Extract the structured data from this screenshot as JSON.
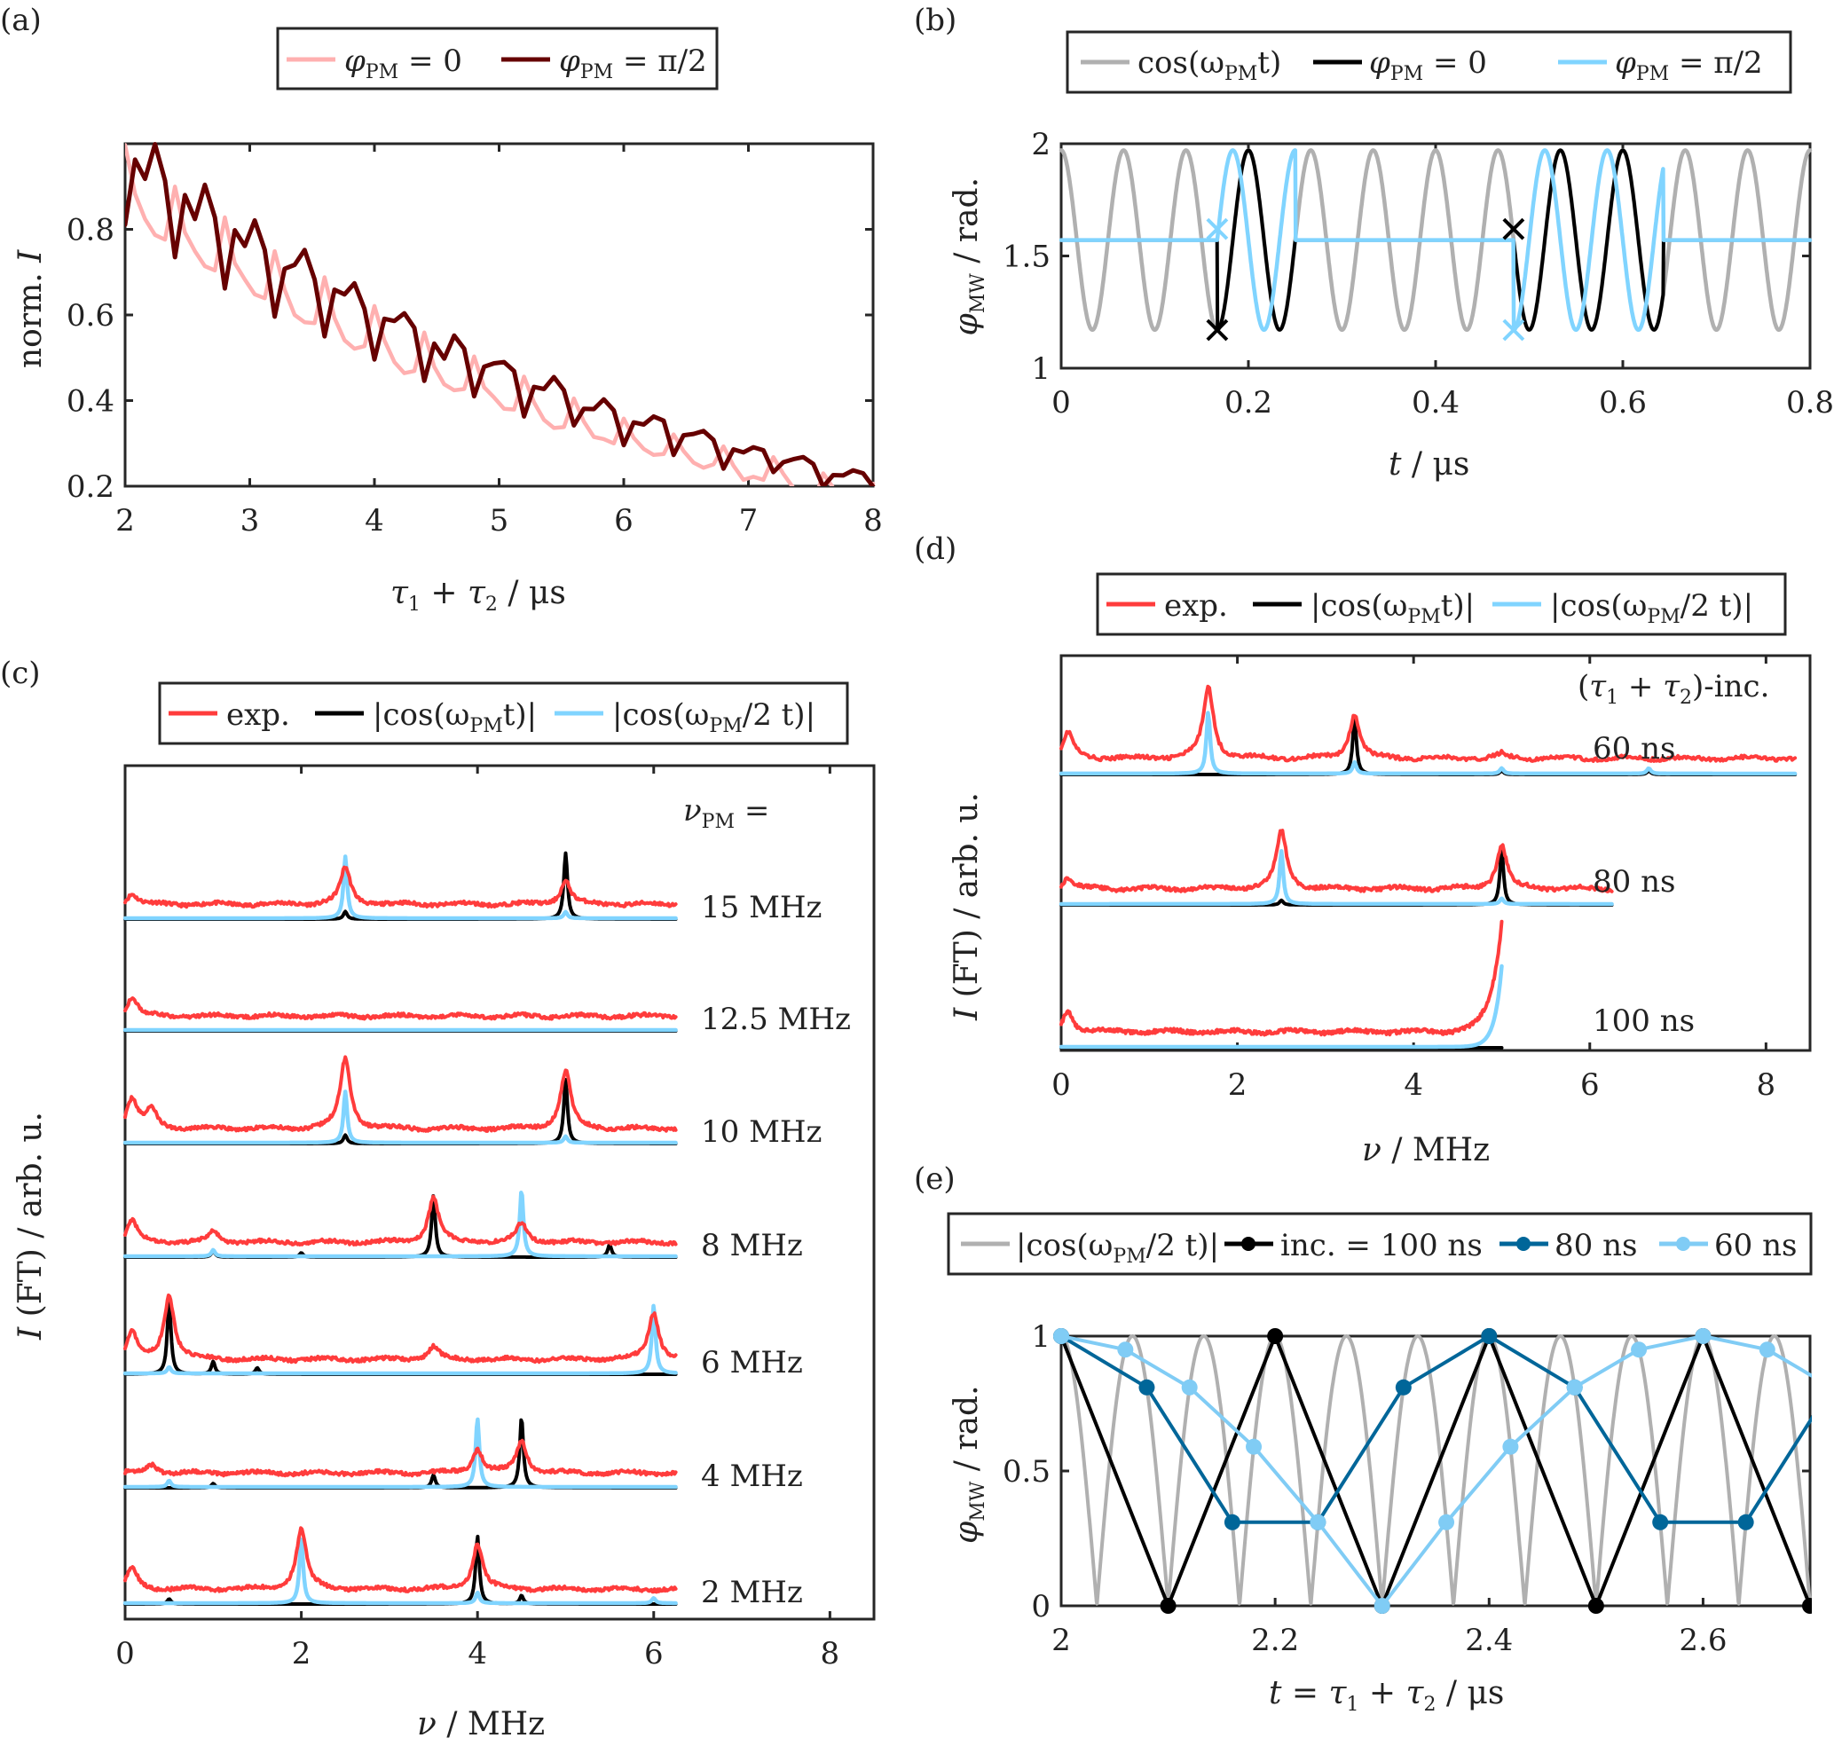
{
  "colors": {
    "pink": "#FFB0B0",
    "darkred": "#660000",
    "grey": "#B0B0B0",
    "black": "#000000",
    "cyan": "#80D4FF",
    "red": "#FF3C3C",
    "darkblue": "#006699",
    "lightblue": "#80CCF5"
  },
  "chart_data": [
    {
      "id": "a",
      "panel_label": "(a)",
      "type": "line",
      "title": "",
      "xlabel": "τ₁ + τ₂ / μs",
      "ylabel": "norm. I",
      "xlim": [
        2,
        8
      ],
      "ylim": [
        0.2,
        1.0
      ],
      "xticks": [
        2,
        3,
        4,
        5,
        6,
        7,
        8
      ],
      "yticks": [
        0.2,
        0.4,
        0.6,
        0.8
      ],
      "xtick_labels": [
        "2",
        "3",
        "4",
        "5",
        "6",
        "7",
        "8"
      ],
      "ytick_labels": [
        "0.2",
        "0.4",
        "0.6",
        "0.8"
      ],
      "legend": {
        "placement": "top",
        "entries": [
          "φPM = 0",
          "φPM = π/2"
        ]
      },
      "x": {
        "start": 2.0,
        "step": 0.08
      },
      "series": [
        {
          "name": "φPM = 0",
          "color_key": "pink",
          "values": [
            0.997,
            0.883,
            0.824,
            0.787,
            0.776,
            0.9,
            0.793,
            0.749,
            0.714,
            0.704,
            0.828,
            0.721,
            0.683,
            0.648,
            0.639,
            0.749,
            0.659,
            0.6,
            0.583,
            0.581,
            0.688,
            0.593,
            0.541,
            0.521,
            0.527,
            0.621,
            0.541,
            0.49,
            0.464,
            0.469,
            0.559,
            0.479,
            0.438,
            0.424,
            0.427,
            0.503,
            0.431,
            0.407,
            0.381,
            0.379,
            0.456,
            0.396,
            0.355,
            0.336,
            0.338,
            0.405,
            0.351,
            0.315,
            0.31,
            0.3,
            0.358,
            0.313,
            0.287,
            0.273,
            0.275,
            0.321,
            0.282,
            0.255,
            0.243,
            0.251,
            0.293,
            0.248,
            0.215,
            0.222,
            0.215,
            0.268,
            0.229,
            0.196,
            0.175,
            0.155,
            0.23,
            0.196,
            0.168,
            0.155,
            0.155,
            0.206
          ]
        },
        {
          "name": "φPM = π/2",
          "color_key": "darkred",
          "values": [
            0.811,
            0.963,
            0.918,
            0.999,
            0.914,
            0.735,
            0.88,
            0.824,
            0.904,
            0.828,
            0.662,
            0.798,
            0.761,
            0.821,
            0.752,
            0.596,
            0.708,
            0.717,
            0.752,
            0.683,
            0.55,
            0.659,
            0.648,
            0.674,
            0.614,
            0.496,
            0.591,
            0.586,
            0.604,
            0.57,
            0.446,
            0.533,
            0.498,
            0.552,
            0.521,
            0.41,
            0.479,
            0.487,
            0.49,
            0.469,
            0.363,
            0.432,
            0.427,
            0.455,
            0.424,
            0.342,
            0.381,
            0.38,
            0.403,
            0.377,
            0.296,
            0.349,
            0.344,
            0.363,
            0.353,
            0.273,
            0.319,
            0.322,
            0.329,
            0.308,
            0.241,
            0.286,
            0.279,
            0.291,
            0.284,
            0.233,
            0.256,
            0.263,
            0.268,
            0.252,
            0.199,
            0.226,
            0.225,
            0.237,
            0.23,
            0.199
          ]
        }
      ]
    },
    {
      "id": "b",
      "panel_label": "(b)",
      "type": "line",
      "xlabel": "t / μs",
      "ylabel": "φMW / rad.",
      "xlim": [
        0,
        0.8
      ],
      "ylim": [
        1,
        2
      ],
      "xticks": [
        0,
        0.2,
        0.4,
        0.6,
        0.8
      ],
      "yticks": [
        1,
        1.5,
        2
      ],
      "xtick_labels": [
        "0",
        "0.2",
        "0.4",
        "0.6",
        "0.8"
      ],
      "ytick_labels": [
        "1",
        "1.5",
        "2"
      ],
      "legend": {
        "placement": "top",
        "entries": [
          "cos(ωPM t)",
          "φPM = 0",
          "φPM = π/2"
        ]
      },
      "nu_PM_MHz": 15,
      "offset_rad": 1.5708,
      "amplitude_rad": 0.4,
      "pulse_windows_us": [
        [
          0.1667,
          0.25
        ],
        [
          0.4833,
          0.6433
        ]
      ],
      "markers": [
        {
          "series": "φPM = 0",
          "t": 0.1667,
          "y": 1.17
        },
        {
          "series": "φPM = 0",
          "t": 0.4833,
          "y": 1.62
        },
        {
          "series": "φPM = π/2",
          "t": 0.1667,
          "y": 1.62
        },
        {
          "series": "φPM = π/2",
          "t": 0.4833,
          "y": 1.17
        }
      ]
    },
    {
      "id": "c",
      "panel_label": "(c)",
      "type": "line",
      "xlabel": "ν / MHz",
      "ylabel": "I (FT) / arb. u.",
      "xlim": [
        0,
        8.5
      ],
      "xticks": [
        0,
        2,
        4,
        6,
        8
      ],
      "xtick_labels": [
        "0",
        "2",
        "4",
        "6",
        "8"
      ],
      "legend": {
        "placement": "top",
        "entries": [
          "exp.",
          "|cos(ωPM t)|",
          "|cos(ωPM/2 t)|"
        ]
      },
      "header_annotation": "νPM =",
      "xmax_trace": 6.25,
      "traces": [
        {
          "label": "15 MHz",
          "red": [
            [
              0.08,
              0.25
            ],
            [
              2.5,
              0.85
            ],
            [
              5.0,
              0.55
            ]
          ],
          "black": [
            [
              2.5,
              0.18
            ],
            [
              5.0,
              1.55
            ]
          ],
          "cyan": [
            [
              2.5,
              1.45
            ],
            [
              5.0,
              0.15
            ]
          ]
        },
        {
          "label": "12.5 MHz",
          "red": [
            [
              0.08,
              0.45
            ]
          ],
          "black": [],
          "cyan": []
        },
        {
          "label": "10 MHz",
          "red": [
            [
              0.08,
              0.7
            ],
            [
              0.3,
              0.45
            ],
            [
              2.5,
              1.65
            ],
            [
              5.0,
              1.35
            ]
          ],
          "black": [
            [
              2.5,
              0.2
            ],
            [
              5.0,
              1.5
            ]
          ],
          "cyan": [
            [
              2.5,
              1.2
            ],
            [
              5.0,
              0.15
            ]
          ]
        },
        {
          "label": "8 MHz",
          "red": [
            [
              0.08,
              0.5
            ],
            [
              1.0,
              0.25
            ],
            [
              3.5,
              1.05
            ],
            [
              4.5,
              0.45
            ]
          ],
          "black": [
            [
              3.5,
              1.45
            ],
            [
              5.5,
              0.3
            ],
            [
              1.0,
              0.15
            ],
            [
              2.0,
              0.1
            ]
          ],
          "cyan": [
            [
              4.5,
              1.55
            ],
            [
              1.0,
              0.15
            ]
          ]
        },
        {
          "label": "6 MHz",
          "red": [
            [
              0.08,
              0.6
            ],
            [
              0.5,
              1.5
            ],
            [
              6.0,
              1.1
            ],
            [
              3.5,
              0.3
            ]
          ],
          "black": [
            [
              0.5,
              1.75
            ],
            [
              1.0,
              0.3
            ],
            [
              1.5,
              0.15
            ]
          ],
          "cyan": [
            [
              6.0,
              1.6
            ],
            [
              0.5,
              0.15
            ]
          ]
        },
        {
          "label": "4 MHz",
          "red": [
            [
              0.3,
              0.2
            ],
            [
              4.0,
              0.55
            ],
            [
              4.5,
              0.75
            ]
          ],
          "black": [
            [
              4.5,
              1.65
            ],
            [
              3.5,
              0.3
            ],
            [
              1.0,
              0.1
            ]
          ],
          "cyan": [
            [
              4.0,
              1.6
            ],
            [
              0.5,
              0.15
            ]
          ]
        },
        {
          "label": "2 MHz",
          "red": [
            [
              0.08,
              0.5
            ],
            [
              2.0,
              1.4
            ],
            [
              4.0,
              1.05
            ]
          ],
          "black": [
            [
              4.0,
              1.6
            ],
            [
              4.5,
              0.2
            ],
            [
              0.5,
              0.12
            ]
          ],
          "cyan": [
            [
              2.0,
              1.55
            ],
            [
              4.0,
              0.25
            ],
            [
              6.0,
              0.12
            ]
          ]
        }
      ]
    },
    {
      "id": "d",
      "panel_label": "(d)",
      "type": "line",
      "xlabel": "ν / MHz",
      "ylabel": "I (FT) / arb. u.",
      "xlim": [
        0,
        8.5
      ],
      "xticks": [
        0,
        2,
        4,
        6,
        8
      ],
      "xtick_labels": [
        "0",
        "2",
        "4",
        "6",
        "8"
      ],
      "legend": {
        "placement": "top",
        "entries": [
          "exp.",
          "|cos(ωPM t)|",
          "|cos(ωPM/2 t)|"
        ]
      },
      "header_annotation": "(τ₁ + τ₂)-inc.",
      "traces": [
        {
          "label": "60 ns",
          "xmax": 8.33,
          "red": [
            [
              0.08,
              0.55
            ],
            [
              1.67,
              1.55
            ],
            [
              3.33,
              0.95
            ],
            [
              5.0,
              0.1
            ]
          ],
          "black": [
            [
              3.33,
              1.25
            ],
            [
              5.0,
              0.08
            ],
            [
              6.67,
              0.08
            ]
          ],
          "cyan": [
            [
              1.67,
              1.35
            ],
            [
              3.33,
              0.25
            ],
            [
              5.0,
              0.12
            ],
            [
              6.67,
              0.12
            ]
          ]
        },
        {
          "label": "80 ns",
          "xmax": 6.25,
          "red": [
            [
              0.08,
              0.25
            ],
            [
              2.5,
              1.25
            ],
            [
              5.0,
              0.95
            ]
          ],
          "black": [
            [
              5.0,
              1.2
            ],
            [
              2.5,
              0.1
            ]
          ],
          "cyan": [
            [
              2.5,
              1.15
            ],
            [
              5.0,
              0.12
            ]
          ]
        },
        {
          "label": "100 ns",
          "xmax": 5.0,
          "red": [
            [
              0.08,
              0.45
            ]
          ],
          "redEdge": 2.4,
          "black": [],
          "cyan": [],
          "cyanEdge": 1.75
        }
      ]
    },
    {
      "id": "e",
      "panel_label": "(e)",
      "type": "line",
      "xlabel": "t = τ₁ + τ₂ / μs",
      "ylabel": "φMW / rad.",
      "xlim": [
        2,
        2.7
      ],
      "ylim": [
        0,
        1
      ],
      "xticks": [
        2,
        2.2,
        2.4,
        2.6
      ],
      "yticks": [
        0,
        0.5,
        1
      ],
      "xtick_labels": [
        "2",
        "2.2",
        "2.4",
        "2.6"
      ],
      "ytick_labels": [
        "0",
        "0.5",
        "1"
      ],
      "legend": {
        "placement": "top",
        "entries": [
          "|cos(ωPM/2 t)|",
          "inc. = 100 ns",
          "80 ns",
          "60 ns"
        ]
      },
      "nu_PM_MHz": 15,
      "series": [
        {
          "name": "inc. = 100 ns",
          "color_key": "black",
          "step_us": 0.1,
          "x": [
            2.0,
            2.1,
            2.2,
            2.3,
            2.4,
            2.5,
            2.6,
            2.7
          ],
          "y": [
            1,
            0,
            1,
            0,
            1,
            0,
            1,
            0
          ]
        },
        {
          "name": "80 ns",
          "color_key": "darkblue",
          "step_us": 0.08,
          "x": [
            2.0,
            2.08,
            2.16,
            2.24,
            2.32,
            2.4,
            2.48,
            2.56,
            2.64,
            2.72
          ],
          "y": [
            1,
            0.81,
            0.31,
            0.31,
            0.81,
            1,
            0.81,
            0.31,
            0.31,
            0.81
          ]
        },
        {
          "name": "60 ns",
          "color_key": "lightblue",
          "step_us": 0.06,
          "x": [
            2.0,
            2.06,
            2.12,
            2.18,
            2.24,
            2.3,
            2.36,
            2.42,
            2.48,
            2.54,
            2.6,
            2.66,
            2.72
          ],
          "y": [
            1,
            0.95,
            0.81,
            0.59,
            0.31,
            0,
            0.31,
            0.59,
            0.81,
            0.95,
            1,
            0.95,
            0.81
          ]
        }
      ]
    }
  ]
}
